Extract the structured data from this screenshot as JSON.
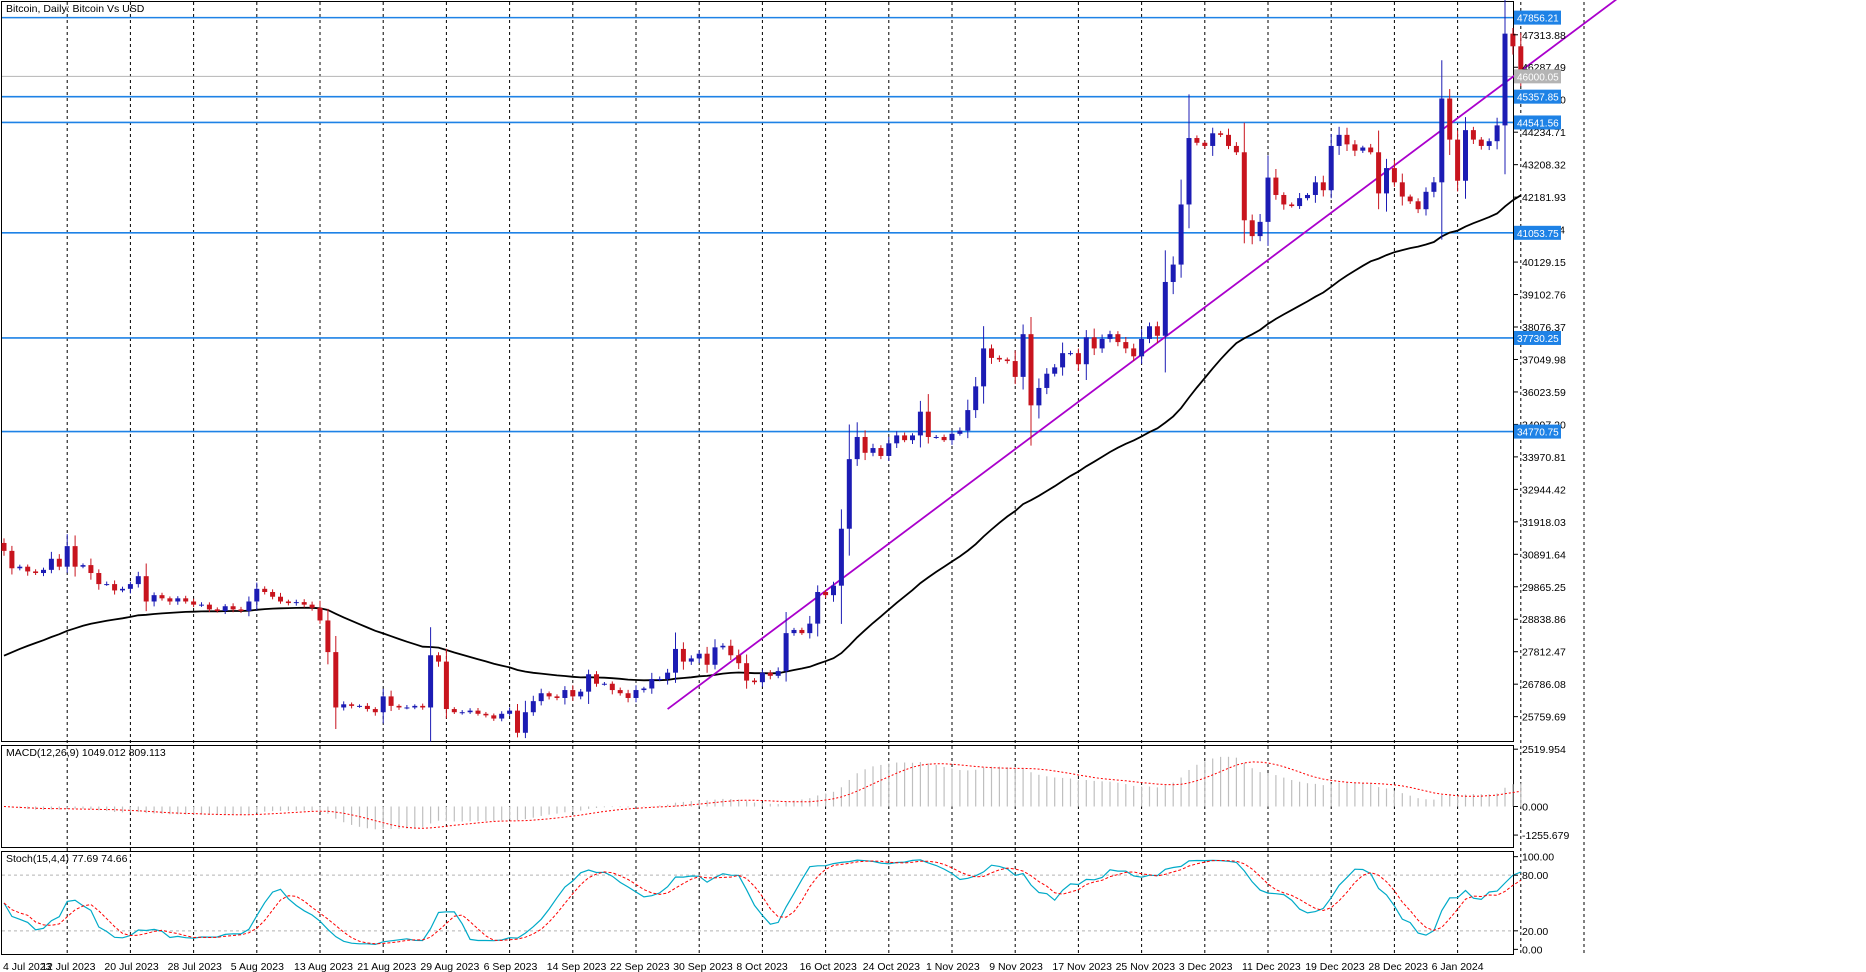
{
  "chart_data": {
    "type": "candlestick",
    "title": "Bitcoin, Daily:  Bitcoin Vs USD",
    "interval": "Daily",
    "colors": {
      "bull": "#1c1cb4",
      "bear": "#c8141e",
      "line": "#1e82e6",
      "trend": "#aa00cc",
      "ma": "#000000",
      "stoch_main": "#00aac8",
      "signal": "#ff0000",
      "histogram": "#bfbfbf"
    },
    "price_axis": {
      "ylim": [
        24990,
        48350
      ],
      "ticks": [
        "25759.69",
        "26786.08",
        "27812.47",
        "28838.86",
        "29865.25",
        "30891.64",
        "31918.03",
        "32944.42",
        "33970.81",
        "34997.20",
        "36023.59",
        "37049.98",
        "38076.37",
        "39102.76",
        "40129.15",
        "41155.54",
        "42181.93",
        "43208.32",
        "44234.71",
        "45261.10",
        "46287.49",
        "47313.88"
      ],
      "current_price": "46000.05"
    },
    "horizontal_levels": [
      {
        "value": 47856.21,
        "label": "47856.21"
      },
      {
        "value": 45357.85,
        "label": "45357.85"
      },
      {
        "value": 44541.56,
        "label": "44541.56"
      },
      {
        "value": 41053.75,
        "label": "41053.75"
      },
      {
        "value": 37730.25,
        "label": "37730.25"
      },
      {
        "value": 34770.75,
        "label": "34770.75"
      }
    ],
    "x_labels": [
      "4 Jul 2023",
      "12 Jul 2023",
      "20 Jul 2023",
      "28 Jul 2023",
      "5 Aug 2023",
      "13 Aug 2023",
      "21 Aug 2023",
      "29 Aug 2023",
      "6 Sep 2023",
      "14 Sep 2023",
      "22 Sep 2023",
      "30 Sep 2023",
      "8 Oct 2023",
      "16 Oct 2023",
      "24 Oct 2023",
      "1 Nov 2023",
      "9 Nov 2023",
      "17 Nov 2023",
      "25 Nov 2023",
      "3 Dec 2023",
      "11 Dec 2023",
      "19 Dec 2023",
      "28 Dec 2023",
      "6 Jan 2024"
    ],
    "closes": [
      31000,
      30450,
      30500,
      30350,
      30300,
      30400,
      30750,
      30500,
      31150,
      30500,
      30550,
      30300,
      29950,
      29950,
      29750,
      29800,
      29950,
      30200,
      29400,
      29600,
      29500,
      29400,
      29500,
      29400,
      29300,
      29300,
      29150,
      29100,
      29250,
      29150,
      29100,
      29400,
      29800,
      29700,
      29550,
      29400,
      29350,
      29380,
      29300,
      29200,
      28800,
      27800,
      26050,
      26150,
      26100,
      26100,
      26000,
      25900,
      26400,
      26100,
      26050,
      26050,
      26100,
      26050,
      27700,
      27500,
      26000,
      25900,
      25900,
      25950,
      25850,
      25800,
      25700,
      25850,
      25950,
      25250,
      25900,
      26250,
      26500,
      26400,
      26350,
      26600,
      26400,
      26550,
      27100,
      26800,
      26800,
      26600,
      26500,
      26350,
      26600,
      26650,
      26950,
      26950,
      27150,
      27900,
      27500,
      27600,
      27750,
      27400,
      27950,
      28000,
      27700,
      27450,
      26900,
      26850,
      27150,
      27050,
      27200,
      28400,
      28500,
      28400,
      28700,
      29700,
      29600,
      29900,
      31700,
      33900,
      34600,
      34100,
      34250,
      34000,
      34400,
      34650,
      34500,
      34650,
      35400,
      34600,
      34600,
      34500,
      34700,
      34800,
      35450,
      36200,
      37400,
      37100,
      37050,
      37000,
      36500,
      37850,
      35600,
      36150,
      36600,
      36800,
      37250,
      37250,
      36900,
      37750,
      37400,
      37700,
      37850,
      37600,
      37400,
      37150,
      37700,
      38100,
      37800,
      39500,
      40050,
      41950,
      44050,
      43900,
      43800,
      44200,
      44150,
      43800,
      43600,
      41450,
      40950,
      41400,
      42800,
      42250,
      41950,
      41900,
      42150,
      42250,
      42650,
      42400,
      43800,
      44150,
      43850,
      43650,
      43750,
      43600,
      42300,
      43100,
      42650,
      42200,
      42050,
      41800,
      42350,
      42650,
      45300,
      44000,
      42700,
      44300,
      44000,
      43800,
      43950,
      44450,
      47350,
      46950,
      46000
    ],
    "ma_start": 27550,
    "macd": {
      "label": "MACD(12,26,9) 1049.012 809.113",
      "ticks": [
        "2519.954",
        "0.000",
        "-1255.679"
      ],
      "ylim": [
        -1780,
        2660
      ]
    },
    "stoch": {
      "label": "Stoch(15,4,4) 77.69 74.66",
      "ticks": [
        "100.00",
        "80.00",
        "20.00",
        "0.00"
      ],
      "ylim": [
        -5,
        105
      ]
    }
  }
}
